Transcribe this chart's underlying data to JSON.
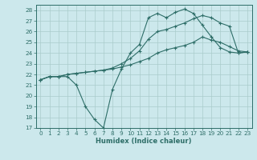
{
  "title": "",
  "xlabel": "Humidex (Indice chaleur)",
  "background_color": "#cce8ec",
  "grid_color": "#aacccc",
  "line_color": "#2e6e68",
  "xlim": [
    -0.5,
    23.5
  ],
  "ylim": [
    17,
    28.5
  ],
  "xticks": [
    0,
    1,
    2,
    3,
    4,
    5,
    6,
    7,
    8,
    9,
    10,
    11,
    12,
    13,
    14,
    15,
    16,
    17,
    18,
    19,
    20,
    21,
    22,
    23
  ],
  "yticks": [
    17,
    18,
    19,
    20,
    21,
    22,
    23,
    24,
    25,
    26,
    27,
    28
  ],
  "line1_x": [
    0,
    1,
    2,
    3,
    4,
    5,
    6,
    7,
    8,
    9,
    10,
    11,
    12,
    13,
    14,
    15,
    16,
    17,
    18,
    19,
    20,
    21,
    22,
    23
  ],
  "line1_y": [
    21.5,
    21.8,
    21.8,
    21.8,
    21.0,
    19.0,
    17.8,
    17.0,
    20.6,
    22.5,
    24.0,
    24.8,
    27.3,
    27.7,
    27.3,
    27.8,
    28.1,
    27.7,
    26.6,
    25.5,
    24.5,
    24.1,
    24.0,
    24.1
  ],
  "line2_x": [
    0,
    1,
    2,
    3,
    4,
    5,
    6,
    7,
    8,
    9,
    10,
    11,
    12,
    13,
    14,
    15,
    16,
    17,
    18,
    19,
    20,
    21,
    22,
    23
  ],
  "line2_y": [
    21.5,
    21.8,
    21.8,
    22.0,
    22.1,
    22.2,
    22.3,
    22.4,
    22.6,
    23.0,
    23.5,
    24.2,
    25.3,
    26.0,
    26.2,
    26.5,
    26.8,
    27.2,
    27.5,
    27.3,
    26.8,
    26.5,
    24.0,
    24.1
  ],
  "line3_x": [
    0,
    1,
    2,
    3,
    4,
    5,
    6,
    7,
    8,
    9,
    10,
    11,
    12,
    13,
    14,
    15,
    16,
    17,
    18,
    19,
    20,
    21,
    22,
    23
  ],
  "line3_y": [
    21.5,
    21.8,
    21.8,
    22.0,
    22.1,
    22.2,
    22.3,
    22.4,
    22.5,
    22.7,
    22.9,
    23.2,
    23.5,
    24.0,
    24.3,
    24.5,
    24.7,
    25.0,
    25.5,
    25.2,
    25.0,
    24.6,
    24.2,
    24.1
  ],
  "tick_fontsize": 5.2,
  "xlabel_fontsize": 6.0
}
